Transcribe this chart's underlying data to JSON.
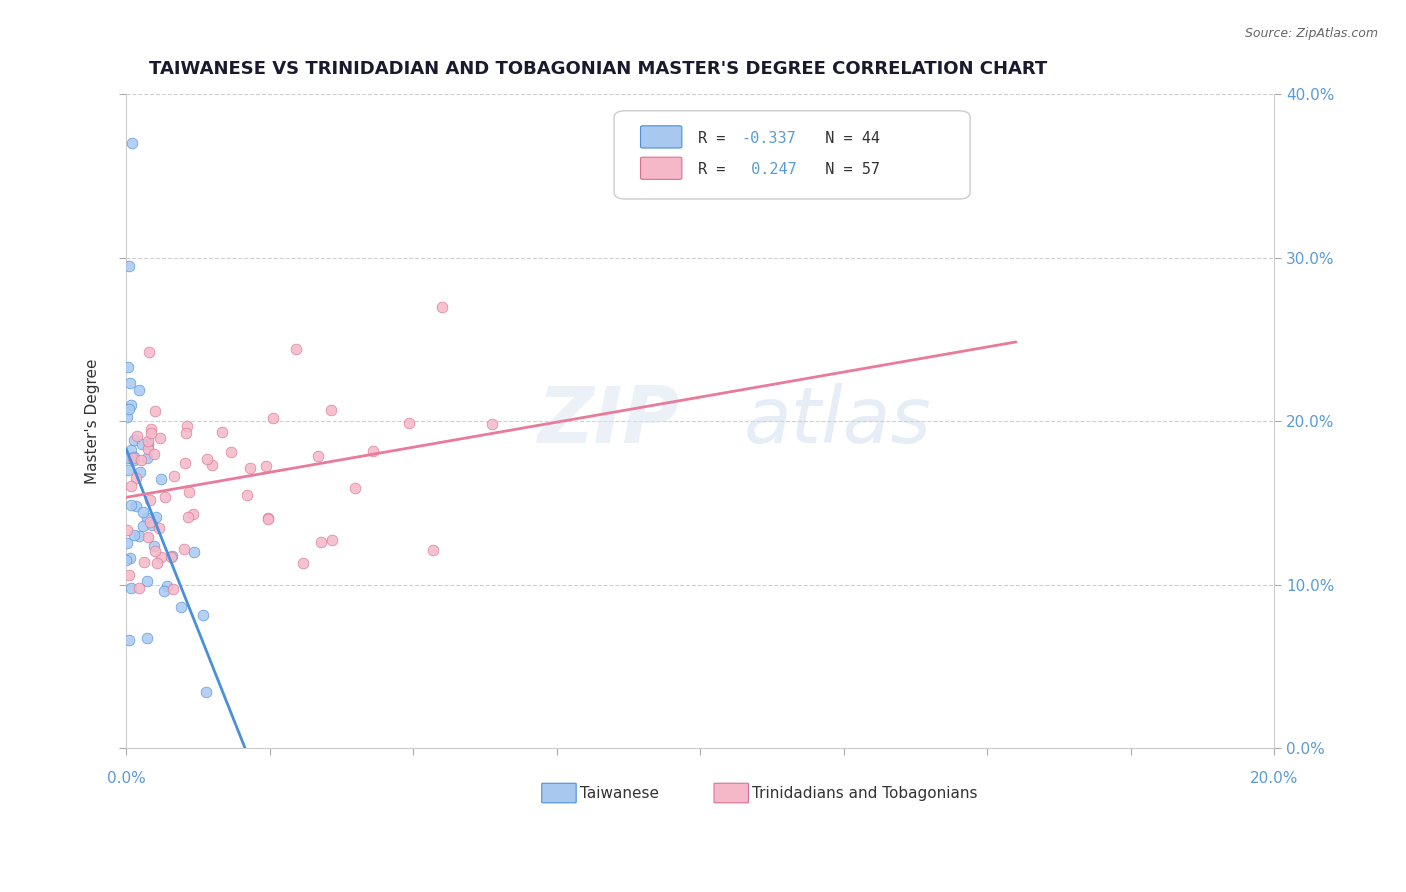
{
  "title": "TAIWANESE VS TRINIDADIAN AND TOBAGONIAN MASTER'S DEGREE CORRELATION CHART",
  "source": "Source: ZipAtlas.com",
  "ylabel": "Master's Degree",
  "legend_taiwanese": "Taiwanese",
  "legend_trinidadian": "Trinidadians and Tobagonians",
  "r_taiwanese": -0.337,
  "n_taiwanese": 44,
  "r_trinidadian": 0.247,
  "n_trinidadian": 57,
  "color_taiwanese": "#a8c8f0",
  "color_trinidadian": "#f5b8c8",
  "color_line_taiwanese": "#4a90d9",
  "color_line_trinidadian": "#e87a9a",
  "xlim": [
    0.0,
    0.2
  ],
  "ylim": [
    0.0,
    0.4
  ],
  "background_color": "#ffffff",
  "grid_color": "#d0d0d0",
  "right_yticks": [
    0.0,
    0.1,
    0.2,
    0.3,
    0.4
  ],
  "right_yticklabels": [
    "0.0%",
    "10.0%",
    "20.0%",
    "30.0%",
    "40.0%"
  ],
  "tick_color": "#5b9bd5"
}
